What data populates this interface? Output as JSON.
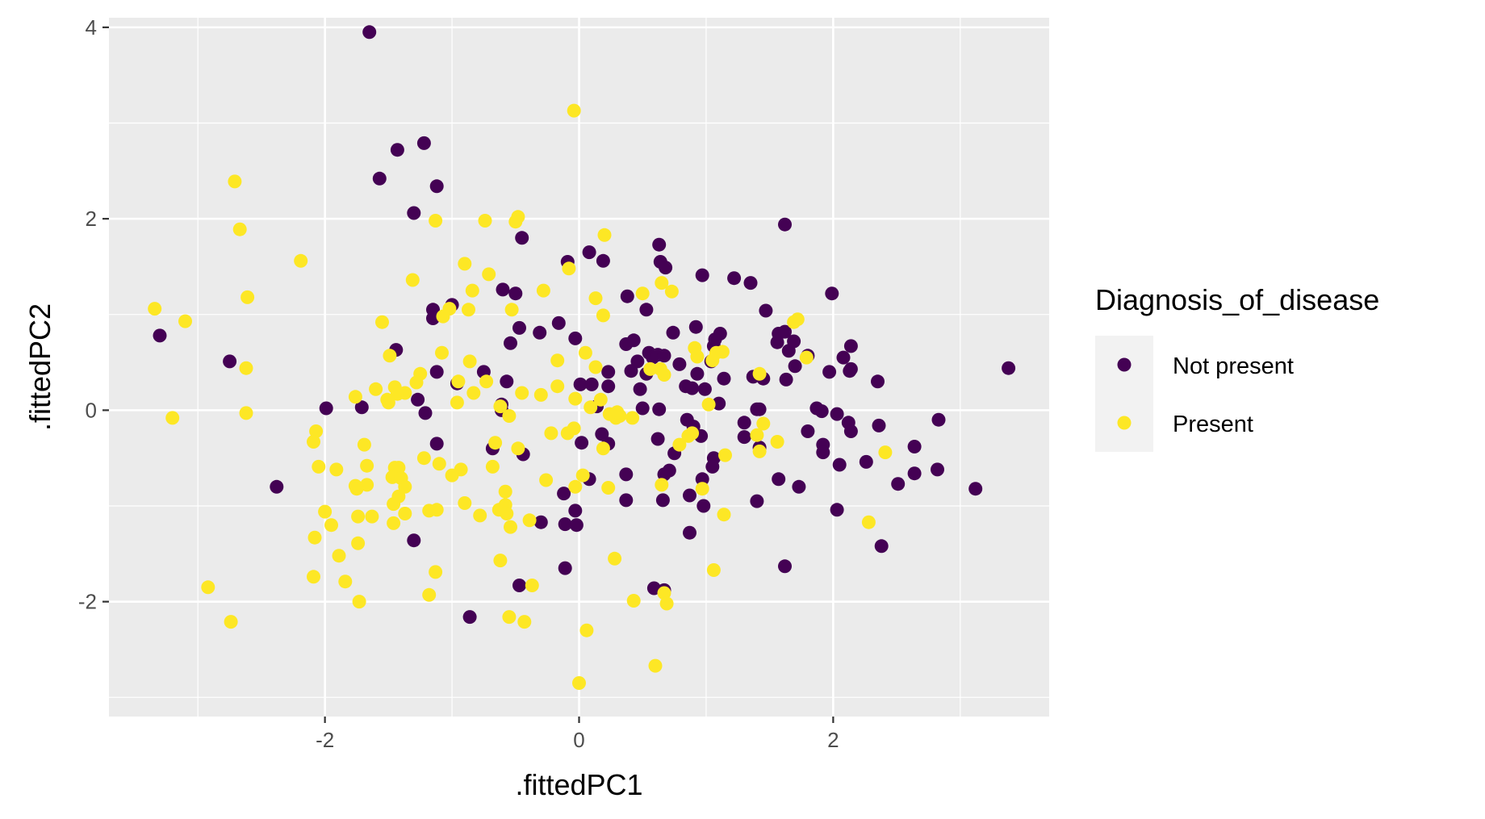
{
  "chart_data": {
    "type": "scatter",
    "title": "",
    "xlabel": ".fittedPC1",
    "ylabel": ".fittedPC2",
    "xlim": [
      -3.7,
      3.7
    ],
    "ylim": [
      -3.2,
      4.1
    ],
    "x_ticks": [
      -2,
      0,
      2
    ],
    "x_tick_labels": [
      "-2",
      "0",
      "2"
    ],
    "y_ticks": [
      -2,
      0,
      2,
      4
    ],
    "y_tick_labels": [
      "-2",
      "0",
      "2",
      "4"
    ],
    "grid": true,
    "background": "#ebebeb",
    "legend": {
      "title": "Diagnosis_of_disease",
      "position": "right",
      "entries": [
        "Not present",
        "Present"
      ]
    },
    "series": [
      {
        "name": "Not present",
        "color": "#440154",
        "points": [
          [
            -1.65,
            3.95
          ],
          [
            -1.43,
            2.72
          ],
          [
            -1.22,
            2.79
          ],
          [
            -1.57,
            2.42
          ],
          [
            -1.12,
            2.34
          ],
          [
            -1.3,
            2.06
          ],
          [
            -3.3,
            0.78
          ],
          [
            -2.75,
            0.51
          ],
          [
            -2.38,
            -0.8
          ],
          [
            -1.99,
            0.02
          ],
          [
            -1.71,
            0.03
          ],
          [
            -1.44,
            0.63
          ],
          [
            -1.15,
            1.05
          ],
          [
            -1.15,
            0.96
          ],
          [
            -1.0,
            1.1
          ],
          [
            -1.12,
            0.4
          ],
          [
            -1.27,
            0.11
          ],
          [
            -1.21,
            -0.03
          ],
          [
            -1.12,
            -0.35
          ],
          [
            -1.3,
            -1.36
          ],
          [
            -0.96,
            0.28
          ],
          [
            -0.75,
            0.4
          ],
          [
            -0.6,
            1.26
          ],
          [
            -0.5,
            1.22
          ],
          [
            -0.45,
            1.8
          ],
          [
            -0.31,
            0.81
          ],
          [
            -0.54,
            0.7
          ],
          [
            -0.47,
            0.86
          ],
          [
            -0.57,
            0.3
          ],
          [
            -0.61,
            0.06
          ],
          [
            -0.61,
            0.0
          ],
          [
            -0.68,
            -0.4
          ],
          [
            -0.44,
            -0.46
          ],
          [
            -0.3,
            -1.17
          ],
          [
            -0.47,
            -1.83
          ],
          [
            -0.86,
            -2.16
          ],
          [
            -0.16,
            0.91
          ],
          [
            -0.09,
            1.55
          ],
          [
            0.08,
            1.65
          ],
          [
            0.19,
            1.56
          ],
          [
            -0.03,
            0.75
          ],
          [
            0.01,
            0.27
          ],
          [
            0.1,
            0.27
          ],
          [
            0.23,
            0.4
          ],
          [
            0.23,
            0.25
          ],
          [
            0.14,
            0.04
          ],
          [
            0.02,
            -0.34
          ],
          [
            0.18,
            -0.25
          ],
          [
            0.23,
            -0.35
          ],
          [
            -0.12,
            -0.87
          ],
          [
            0.08,
            -0.72
          ],
          [
            -0.03,
            -1.05
          ],
          [
            -0.11,
            -1.19
          ],
          [
            -0.02,
            -1.2
          ],
          [
            -0.11,
            -1.65
          ],
          [
            0.37,
            0.69
          ],
          [
            0.43,
            0.73
          ],
          [
            0.38,
            1.19
          ],
          [
            0.53,
            1.05
          ],
          [
            0.63,
            1.73
          ],
          [
            0.64,
            1.55
          ],
          [
            0.68,
            1.49
          ],
          [
            0.46,
            0.51
          ],
          [
            0.55,
            0.6
          ],
          [
            0.58,
            0.55
          ],
          [
            0.62,
            0.58
          ],
          [
            0.67,
            0.57
          ],
          [
            0.53,
            0.38
          ],
          [
            0.41,
            0.41
          ],
          [
            0.48,
            0.22
          ],
          [
            0.5,
            0.02
          ],
          [
            0.63,
            0.01
          ],
          [
            0.37,
            -0.67
          ],
          [
            0.37,
            -0.94
          ],
          [
            0.62,
            -0.3
          ],
          [
            0.67,
            -0.67
          ],
          [
            0.71,
            -0.63
          ],
          [
            0.66,
            -0.94
          ],
          [
            0.59,
            -1.86
          ],
          [
            0.67,
            -1.88
          ],
          [
            0.74,
            0.81
          ],
          [
            0.79,
            0.48
          ],
          [
            0.84,
            0.25
          ],
          [
            0.89,
            0.23
          ],
          [
            0.93,
            0.38
          ],
          [
            0.92,
            0.87
          ],
          [
            0.97,
            1.41
          ],
          [
            1.04,
            0.51
          ],
          [
            1.06,
            0.67
          ],
          [
            1.11,
            0.8
          ],
          [
            1.14,
            0.33
          ],
          [
            1.07,
            0.74
          ],
          [
            0.99,
            0.22
          ],
          [
            0.85,
            -0.1
          ],
          [
            0.9,
            -0.17
          ],
          [
            0.96,
            -0.27
          ],
          [
            1.06,
            -0.5
          ],
          [
            1.05,
            -0.59
          ],
          [
            1.1,
            0.07
          ],
          [
            0.97,
            -0.72
          ],
          [
            0.87,
            -0.89
          ],
          [
            0.98,
            -1.0
          ],
          [
            0.75,
            -0.45
          ],
          [
            0.87,
            -1.28
          ],
          [
            1.22,
            1.38
          ],
          [
            1.35,
            1.33
          ],
          [
            1.47,
            1.04
          ],
          [
            1.56,
            0.71
          ],
          [
            1.57,
            0.8
          ],
          [
            1.62,
            0.82
          ],
          [
            1.65,
            0.62
          ],
          [
            1.69,
            0.72
          ],
          [
            1.37,
            0.35
          ],
          [
            1.45,
            0.33
          ],
          [
            1.63,
            0.32
          ],
          [
            1.4,
            0.01
          ],
          [
            1.42,
            0.01
          ],
          [
            1.3,
            -0.13
          ],
          [
            1.3,
            -0.28
          ],
          [
            1.42,
            -0.39
          ],
          [
            1.57,
            -0.72
          ],
          [
            1.73,
            -0.8
          ],
          [
            1.4,
            -0.95
          ],
          [
            1.62,
            -1.63
          ],
          [
            1.62,
            1.94
          ],
          [
            1.99,
            1.22
          ],
          [
            1.7,
            0.46
          ],
          [
            1.8,
            0.57
          ],
          [
            1.97,
            0.4
          ],
          [
            2.08,
            0.55
          ],
          [
            2.14,
            0.67
          ],
          [
            2.13,
            0.41
          ],
          [
            2.14,
            0.43
          ],
          [
            2.35,
            0.3
          ],
          [
            1.8,
            -0.22
          ],
          [
            1.87,
            0.02
          ],
          [
            1.91,
            -0.01
          ],
          [
            1.92,
            -0.36
          ],
          [
            1.92,
            -0.44
          ],
          [
            2.03,
            -0.04
          ],
          [
            2.12,
            -0.13
          ],
          [
            2.14,
            -0.22
          ],
          [
            2.36,
            -0.16
          ],
          [
            2.05,
            -0.57
          ],
          [
            2.26,
            -0.54
          ],
          [
            2.03,
            -1.04
          ],
          [
            2.38,
            -1.42
          ],
          [
            2.51,
            -0.77
          ],
          [
            2.64,
            -0.38
          ],
          [
            2.64,
            -0.66
          ],
          [
            2.83,
            -0.1
          ],
          [
            2.82,
            -0.62
          ],
          [
            3.12,
            -0.82
          ],
          [
            3.38,
            0.44
          ]
        ]
      },
      {
        "name": "Present",
        "color": "#fde725",
        "points": [
          [
            -0.04,
            3.13
          ],
          [
            -2.71,
            2.39
          ],
          [
            -2.67,
            1.89
          ],
          [
            -2.61,
            1.18
          ],
          [
            -2.19,
            1.56
          ],
          [
            -3.34,
            1.06
          ],
          [
            -3.1,
            0.93
          ],
          [
            -2.62,
            0.44
          ],
          [
            -2.62,
            -0.03
          ],
          [
            -3.2,
            -0.08
          ],
          [
            -1.13,
            1.98
          ],
          [
            -0.74,
            1.98
          ],
          [
            -0.48,
            2.02
          ],
          [
            -0.5,
            1.97
          ],
          [
            0.2,
            1.83
          ],
          [
            -1.31,
            1.36
          ],
          [
            -0.9,
            1.53
          ],
          [
            -0.71,
            1.42
          ],
          [
            -0.84,
            1.25
          ],
          [
            -0.53,
            1.05
          ],
          [
            -0.28,
            1.25
          ],
          [
            -0.87,
            1.05
          ],
          [
            -1.02,
            1.06
          ],
          [
            -1.07,
            0.98
          ],
          [
            -1.08,
            0.6
          ],
          [
            -0.86,
            0.51
          ],
          [
            -1.55,
            0.92
          ],
          [
            -1.49,
            0.57
          ],
          [
            -1.25,
            0.38
          ],
          [
            -1.28,
            0.29
          ],
          [
            -1.37,
            0.18
          ],
          [
            -1.45,
            0.24
          ],
          [
            -1.76,
            0.14
          ],
          [
            -1.6,
            0.22
          ],
          [
            -1.51,
            0.11
          ],
          [
            -1.5,
            0.08
          ],
          [
            -1.43,
            0.17
          ],
          [
            -0.95,
            0.3
          ],
          [
            -0.73,
            0.3
          ],
          [
            -0.96,
            0.08
          ],
          [
            -0.83,
            0.18
          ],
          [
            -0.62,
            0.04
          ],
          [
            -0.45,
            0.18
          ],
          [
            -0.55,
            -0.06
          ],
          [
            -0.48,
            -0.4
          ],
          [
            -0.66,
            -0.34
          ],
          [
            -2.07,
            -0.22
          ],
          [
            -2.09,
            -0.33
          ],
          [
            -2.05,
            -0.59
          ],
          [
            -1.91,
            -0.62
          ],
          [
            -1.69,
            -0.36
          ],
          [
            -1.67,
            -0.58
          ],
          [
            -1.67,
            -0.78
          ],
          [
            -1.76,
            -0.79
          ],
          [
            -1.75,
            -0.82
          ],
          [
            -1.42,
            -0.6
          ],
          [
            -1.45,
            -0.6
          ],
          [
            -1.47,
            -0.7
          ],
          [
            -1.4,
            -0.71
          ],
          [
            -1.37,
            -0.8
          ],
          [
            -1.42,
            -0.9
          ],
          [
            -1.46,
            -0.98
          ],
          [
            -1.46,
            -1.18
          ],
          [
            -1.22,
            -0.5
          ],
          [
            -1.1,
            -0.56
          ],
          [
            -0.93,
            -0.62
          ],
          [
            -1.0,
            -0.68
          ],
          [
            -0.68,
            -0.59
          ],
          [
            -0.58,
            -0.85
          ],
          [
            -0.58,
            -0.99
          ],
          [
            -2.0,
            -1.06
          ],
          [
            -1.95,
            -1.2
          ],
          [
            -1.74,
            -1.11
          ],
          [
            -1.63,
            -1.11
          ],
          [
            -1.37,
            -1.08
          ],
          [
            -1.18,
            -1.05
          ],
          [
            -1.12,
            -1.04
          ],
          [
            -0.9,
            -0.97
          ],
          [
            -0.78,
            -1.1
          ],
          [
            -0.63,
            -1.04
          ],
          [
            -0.57,
            -1.08
          ],
          [
            -0.54,
            -1.22
          ],
          [
            -0.39,
            -1.15
          ],
          [
            -2.08,
            -1.33
          ],
          [
            -1.74,
            -1.39
          ],
          [
            -1.89,
            -1.52
          ],
          [
            -2.09,
            -1.74
          ],
          [
            -1.84,
            -1.79
          ],
          [
            -1.13,
            -1.69
          ],
          [
            -1.73,
            -2.0
          ],
          [
            -1.18,
            -1.93
          ],
          [
            -0.62,
            -1.57
          ],
          [
            -0.37,
            -1.83
          ],
          [
            -0.55,
            -2.16
          ],
          [
            -0.43,
            -2.21
          ],
          [
            -2.92,
            -1.85
          ],
          [
            -2.74,
            -2.21
          ],
          [
            -0.26,
            -0.73
          ],
          [
            -0.22,
            -0.24
          ],
          [
            -0.3,
            0.16
          ],
          [
            -0.17,
            0.52
          ],
          [
            -0.17,
            0.25
          ],
          [
            -0.08,
            1.48
          ],
          [
            0.13,
            1.17
          ],
          [
            0.19,
            0.99
          ],
          [
            0.05,
            0.6
          ],
          [
            0.13,
            0.45
          ],
          [
            -0.03,
            0.12
          ],
          [
            0.09,
            0.03
          ],
          [
            0.17,
            0.11
          ],
          [
            0.24,
            -0.04
          ],
          [
            0.32,
            -0.06
          ],
          [
            0.29,
            -0.08
          ],
          [
            0.42,
            -0.08
          ],
          [
            0.3,
            -0.02
          ],
          [
            -0.09,
            -0.24
          ],
          [
            -0.04,
            -0.19
          ],
          [
            0.19,
            -0.4
          ],
          [
            -0.03,
            -0.8
          ],
          [
            0.03,
            -0.68
          ],
          [
            0.23,
            -0.81
          ],
          [
            0.28,
            -1.55
          ],
          [
            0.43,
            -1.99
          ],
          [
            0.67,
            -1.91
          ],
          [
            0.69,
            -2.02
          ],
          [
            0.06,
            -2.3
          ],
          [
            0.0,
            -2.85
          ],
          [
            0.6,
            -2.67
          ],
          [
            0.5,
            1.22
          ],
          [
            0.65,
            1.33
          ],
          [
            0.73,
            1.24
          ],
          [
            0.56,
            0.43
          ],
          [
            0.64,
            0.43
          ],
          [
            0.67,
            0.37
          ],
          [
            0.65,
            -0.78
          ],
          [
            0.79,
            -0.36
          ],
          [
            0.86,
            -0.27
          ],
          [
            0.93,
            0.56
          ],
          [
            0.91,
            0.65
          ],
          [
            1.05,
            0.52
          ],
          [
            1.08,
            0.6
          ],
          [
            1.02,
            0.06
          ],
          [
            1.13,
            0.61
          ],
          [
            1.15,
            -0.47
          ],
          [
            1.14,
            -1.09
          ],
          [
            1.06,
            -1.67
          ],
          [
            0.97,
            -0.82
          ],
          [
            0.89,
            -0.24
          ],
          [
            1.69,
            0.92
          ],
          [
            1.79,
            0.55
          ],
          [
            1.72,
            0.95
          ],
          [
            1.56,
            -0.33
          ],
          [
            1.42,
            -0.43
          ],
          [
            1.45,
            -0.14
          ],
          [
            2.41,
            -0.44
          ],
          [
            2.28,
            -1.17
          ],
          [
            1.42,
            0.38
          ],
          [
            1.4,
            -0.26
          ]
        ]
      }
    ]
  }
}
